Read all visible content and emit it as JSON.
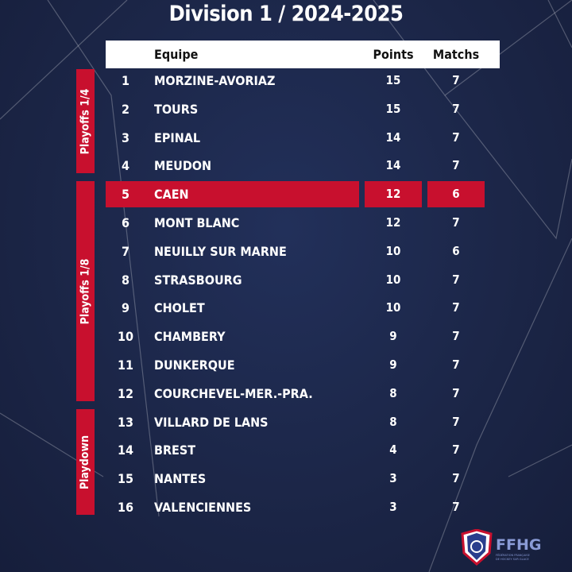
{
  "title": "Division 1 / 2024-2025",
  "header": {
    "team": "Equipe",
    "points": "Points",
    "matches": "Matchs"
  },
  "highlight_color": "#c8102e",
  "highlighted_rank": 5,
  "groups": [
    {
      "label": "Playoffs 1/4"
    },
    {
      "label": "Playoffs 1/8"
    },
    {
      "label": "Playdown"
    }
  ],
  "rows": [
    {
      "rank": "1",
      "team": "MORZINE-AVORIAZ",
      "points": "15",
      "matches": "7"
    },
    {
      "rank": "2",
      "team": "TOURS",
      "points": "15",
      "matches": "7"
    },
    {
      "rank": "3",
      "team": "EPINAL",
      "points": "14",
      "matches": "7"
    },
    {
      "rank": "4",
      "team": "MEUDON",
      "points": "14",
      "matches": "7"
    },
    {
      "rank": "5",
      "team": "CAEN",
      "points": "12",
      "matches": "6"
    },
    {
      "rank": "6",
      "team": "MONT BLANC",
      "points": "12",
      "matches": "7"
    },
    {
      "rank": "7",
      "team": "NEUILLY SUR MARNE",
      "points": "10",
      "matches": "6"
    },
    {
      "rank": "8",
      "team": "STRASBOURG",
      "points": "10",
      "matches": "7"
    },
    {
      "rank": "9",
      "team": "CHOLET",
      "points": "10",
      "matches": "7"
    },
    {
      "rank": "10",
      "team": "CHAMBERY",
      "points": "9",
      "matches": "7"
    },
    {
      "rank": "11",
      "team": "DUNKERQUE",
      "points": "9",
      "matches": "7"
    },
    {
      "rank": "12",
      "team": "COURCHEVEL-MER.-PRA.",
      "points": "8",
      "matches": "7"
    },
    {
      "rank": "13",
      "team": "VILLARD DE LANS",
      "points": "8",
      "matches": "7"
    },
    {
      "rank": "14",
      "team": "BREST",
      "points": "4",
      "matches": "7"
    },
    {
      "rank": "15",
      "team": "NANTES",
      "points": "3",
      "matches": "7"
    },
    {
      "rank": "16",
      "team": "VALENCIENNES",
      "points": "3",
      "matches": "7"
    }
  ],
  "logo": {
    "text": "FFHG",
    "subtitle": "FÉDÉRATION FRANÇAISE DE HOCKEY SUR GLACE"
  }
}
